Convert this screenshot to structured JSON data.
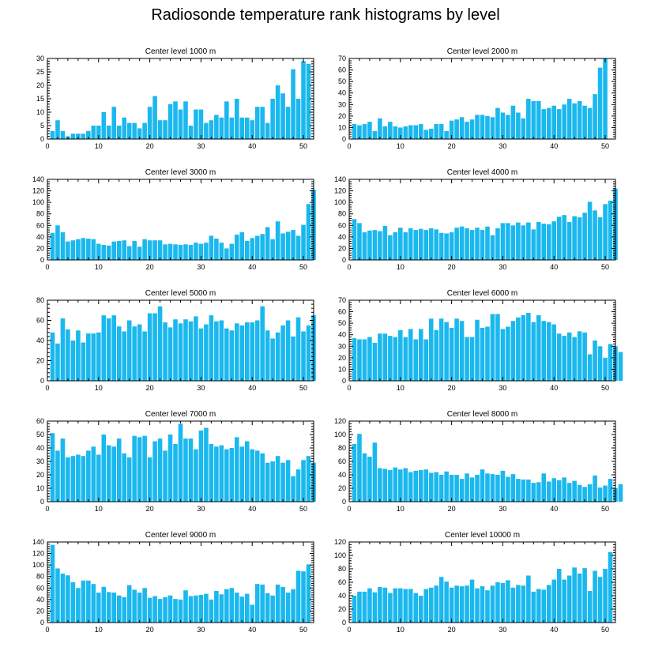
{
  "title": "Radiosonde temperature rank histograms by level",
  "bar_color": "#1ab8ee",
  "chart_data": [
    {
      "type": "bar",
      "title": "Center level 1000 m",
      "xlim": [
        0,
        52
      ],
      "ylim": [
        0,
        30
      ],
      "xticks": [
        0,
        10,
        20,
        30,
        40,
        50
      ],
      "yticks": [
        0,
        5,
        10,
        15,
        20,
        25,
        30
      ],
      "values": [
        3,
        7,
        3,
        1,
        2,
        2,
        2,
        3,
        5,
        5,
        10,
        5,
        12,
        5,
        8,
        6,
        6,
        4,
        6,
        12,
        16,
        7,
        7,
        13,
        14,
        11,
        14,
        5,
        11,
        11,
        6,
        7,
        9,
        8,
        14,
        8,
        15,
        8,
        8,
        7,
        12,
        12,
        6,
        15,
        20,
        17,
        12,
        26,
        15,
        29,
        28
      ]
    },
    {
      "type": "bar",
      "title": "Center level 2000 m",
      "xlim": [
        0,
        52
      ],
      "ylim": [
        0,
        70
      ],
      "xticks": [
        0,
        10,
        20,
        30,
        40,
        50
      ],
      "yticks": [
        0,
        10,
        20,
        30,
        40,
        50,
        60,
        70
      ],
      "values": [
        13,
        12,
        13,
        15,
        7,
        18,
        11,
        15,
        11,
        10,
        11,
        12,
        12,
        13,
        8,
        9,
        13,
        13,
        7,
        16,
        17,
        19,
        15,
        17,
        21,
        21,
        20,
        19,
        27,
        23,
        21,
        29,
        23,
        18,
        35,
        33,
        33,
        26,
        27,
        29,
        26,
        30,
        35,
        31,
        33,
        29,
        27,
        39,
        62,
        70,
        0
      ]
    },
    {
      "type": "bar",
      "title": "Center level 3000 m",
      "xlim": [
        0,
        52
      ],
      "ylim": [
        0,
        140
      ],
      "xticks": [
        0,
        10,
        20,
        30,
        40,
        50
      ],
      "yticks": [
        0,
        20,
        40,
        60,
        80,
        100,
        120,
        140
      ],
      "values": [
        47,
        60,
        48,
        32,
        34,
        36,
        38,
        37,
        36,
        28,
        26,
        25,
        32,
        33,
        34,
        24,
        33,
        23,
        36,
        34,
        34,
        34,
        27,
        28,
        27,
        26,
        27,
        26,
        30,
        28,
        30,
        42,
        37,
        30,
        20,
        28,
        44,
        48,
        33,
        38,
        42,
        45,
        57,
        36,
        67,
        46,
        49,
        52,
        42,
        61,
        97,
        122
      ]
    },
    {
      "type": "bar",
      "title": "Center level 4000 m",
      "xlim": [
        0,
        52
      ],
      "ylim": [
        0,
        140
      ],
      "xticks": [
        0,
        10,
        20,
        30,
        40,
        50
      ],
      "yticks": [
        0,
        20,
        40,
        60,
        80,
        100,
        120,
        140
      ],
      "values": [
        71,
        64,
        48,
        51,
        52,
        50,
        59,
        43,
        48,
        56,
        48,
        55,
        52,
        54,
        52,
        55,
        53,
        47,
        46,
        48,
        56,
        58,
        55,
        52,
        56,
        52,
        58,
        43,
        55,
        64,
        64,
        60,
        65,
        60,
        65,
        53,
        66,
        63,
        62,
        67,
        75,
        78,
        66,
        76,
        74,
        82,
        101,
        86,
        74,
        97,
        103,
        124
      ]
    },
    {
      "type": "bar",
      "title": "Center level 5000 m",
      "xlim": [
        0,
        52
      ],
      "ylim": [
        0,
        80
      ],
      "xticks": [
        0,
        10,
        20,
        30,
        40,
        50
      ],
      "yticks": [
        0,
        20,
        40,
        60,
        80
      ],
      "values": [
        48,
        37,
        62,
        51,
        40,
        50,
        38,
        47,
        47,
        48,
        65,
        62,
        65,
        54,
        49,
        60,
        54,
        56,
        49,
        67,
        67,
        74,
        58,
        53,
        61,
        57,
        61,
        59,
        64,
        52,
        56,
        65,
        59,
        60,
        52,
        50,
        57,
        55,
        58,
        58,
        60,
        74,
        50,
        42,
        48,
        55,
        60,
        44,
        63,
        49,
        55,
        65
      ]
    },
    {
      "type": "bar",
      "title": "Center level 6000 m",
      "xlim": [
        0,
        52
      ],
      "ylim": [
        0,
        70
      ],
      "xticks": [
        0,
        10,
        20,
        30,
        40,
        50
      ],
      "yticks": [
        0,
        10,
        20,
        30,
        40,
        50,
        60,
        70
      ],
      "values": [
        37,
        36,
        36,
        38,
        33,
        41,
        41,
        39,
        38,
        44,
        38,
        45,
        36,
        45,
        36,
        54,
        44,
        54,
        51,
        46,
        54,
        52,
        38,
        38,
        53,
        46,
        47,
        58,
        58,
        45,
        47,
        52,
        55,
        57,
        59,
        51,
        57,
        52,
        51,
        49,
        41,
        39,
        42,
        38,
        43,
        42,
        23,
        35,
        30,
        20,
        32,
        30,
        25
      ]
    },
    {
      "type": "bar",
      "title": "Center level 7000 m",
      "xlim": [
        0,
        52
      ],
      "ylim": [
        0,
        60
      ],
      "xticks": [
        0,
        10,
        20,
        30,
        40,
        50
      ],
      "yticks": [
        0,
        10,
        20,
        30,
        40,
        50,
        60
      ],
      "values": [
        51,
        38,
        47,
        33,
        34,
        35,
        34,
        38,
        41,
        35,
        50,
        42,
        41,
        47,
        36,
        33,
        49,
        48,
        49,
        33,
        45,
        47,
        38,
        50,
        43,
        58,
        47,
        47,
        39,
        53,
        55,
        43,
        41,
        42,
        39,
        40,
        48,
        41,
        45,
        39,
        38,
        36,
        29,
        30,
        34,
        29,
        31,
        19,
        24,
        31,
        34,
        29
      ]
    },
    {
      "type": "bar",
      "title": "Center level 8000 m",
      "xlim": [
        0,
        52
      ],
      "ylim": [
        0,
        120
      ],
      "xticks": [
        0,
        10,
        20,
        30,
        40,
        50
      ],
      "yticks": [
        0,
        20,
        40,
        60,
        80,
        100,
        120
      ],
      "values": [
        86,
        101,
        72,
        67,
        88,
        50,
        49,
        47,
        51,
        48,
        50,
        44,
        46,
        47,
        48,
        43,
        44,
        40,
        45,
        40,
        40,
        34,
        42,
        36,
        40,
        48,
        42,
        41,
        40,
        46,
        37,
        41,
        34,
        33,
        33,
        28,
        29,
        42,
        30,
        35,
        32,
        36,
        28,
        31,
        25,
        22,
        26,
        39,
        21,
        24,
        34,
        20,
        26
      ]
    },
    {
      "type": "bar",
      "title": "Center level 9000 m",
      "xlim": [
        0,
        52
      ],
      "ylim": [
        0,
        140
      ],
      "xticks": [
        0,
        10,
        20,
        30,
        40,
        50
      ],
      "yticks": [
        0,
        20,
        40,
        60,
        80,
        100,
        120,
        140
      ],
      "values": [
        135,
        94,
        85,
        82,
        70,
        60,
        73,
        73,
        67,
        52,
        62,
        53,
        52,
        47,
        44,
        65,
        57,
        52,
        60,
        43,
        46,
        41,
        44,
        47,
        41,
        40,
        56,
        46,
        47,
        48,
        50,
        40,
        55,
        49,
        58,
        60,
        52,
        45,
        50,
        31,
        67,
        66,
        51,
        47,
        66,
        62,
        52,
        58,
        90,
        89,
        101
      ]
    },
    {
      "type": "bar",
      "title": "Center level 10000 m",
      "xlim": [
        0,
        52
      ],
      "ylim": [
        0,
        120
      ],
      "xticks": [
        0,
        10,
        20,
        30,
        40,
        50
      ],
      "yticks": [
        0,
        20,
        40,
        60,
        80,
        100,
        120
      ],
      "values": [
        40,
        46,
        46,
        51,
        45,
        53,
        52,
        44,
        51,
        51,
        50,
        50,
        44,
        40,
        50,
        52,
        55,
        68,
        61,
        52,
        55,
        54,
        55,
        64,
        51,
        54,
        48,
        55,
        60,
        59,
        63,
        52,
        56,
        55,
        70,
        46,
        50,
        49,
        56,
        64,
        80,
        64,
        70,
        82,
        73,
        81,
        47,
        77,
        68,
        80,
        105
      ]
    }
  ]
}
